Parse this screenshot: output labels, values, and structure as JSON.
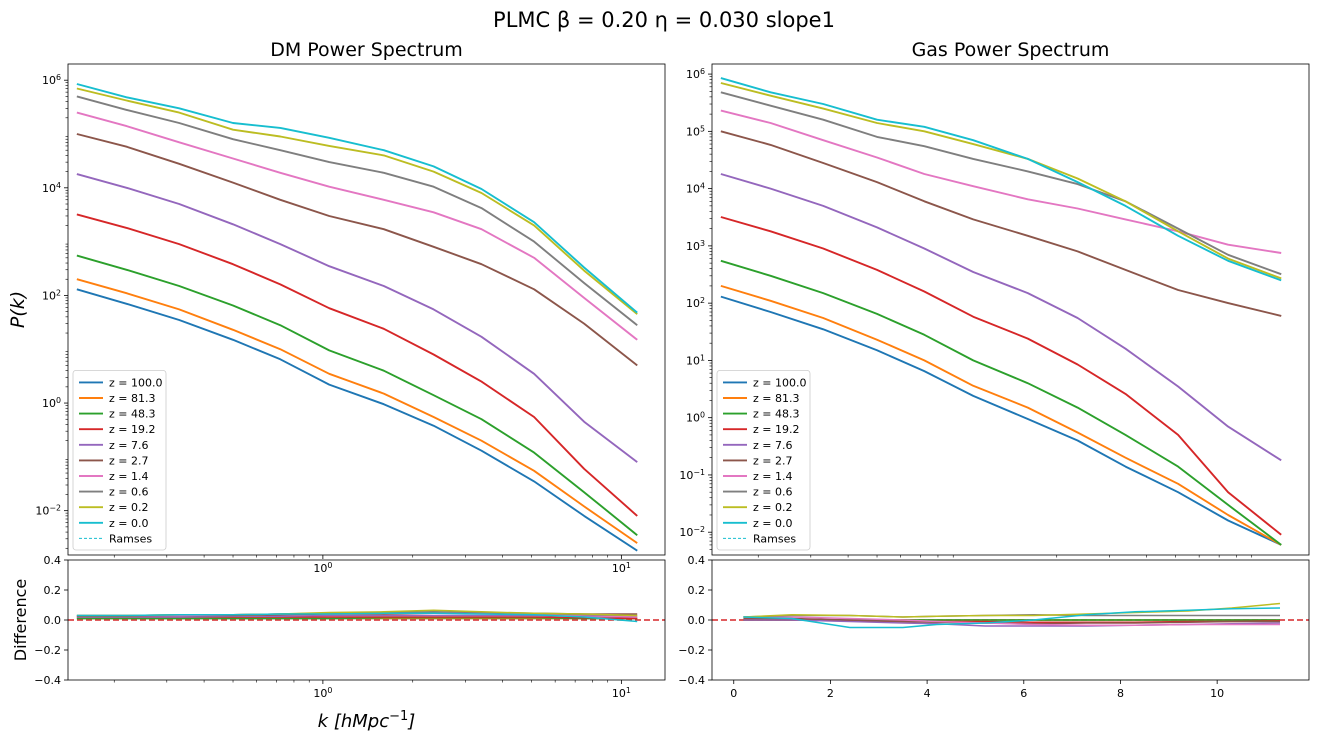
{
  "suptitle": "PLMC   β = 0.20    η = 0.030      slope1",
  "colors": [
    "#1f77b4",
    "#ff7f0e",
    "#2ca02c",
    "#d62728",
    "#9467bd",
    "#8c564b",
    "#e377c2",
    "#7f7f7f",
    "#bcbd22",
    "#17becf"
  ],
  "legend": {
    "entries": [
      "z = 100.0",
      "z = 81.3",
      "z = 48.3",
      "z = 19.2",
      "z = 7.6",
      "z = 2.7",
      "z = 1.4",
      "z = 0.6",
      "z = 0.2",
      "z = 0.0"
    ],
    "ramses_label": "Ramses"
  },
  "chart_data": [
    {
      "id": "dm",
      "type": "line",
      "title": "DM Power Spectrum",
      "ylabel": "P(k)",
      "xscale": "log",
      "yscale": "log",
      "xlim": [
        0.14,
        14
      ],
      "ylim": [
        0.0015,
        2000000
      ],
      "xticks": [
        {
          "v": 1,
          "label": "10^0"
        },
        {
          "v": 10,
          "label": "10^1"
        }
      ],
      "yticks": [
        {
          "v": 0.01,
          "label": "10^-2"
        },
        {
          "v": 1,
          "label": "10^0"
        },
        {
          "v": 100,
          "label": "10^2"
        },
        {
          "v": 10000,
          "label": "10^4"
        },
        {
          "v": 1000000,
          "label": "10^6"
        }
      ],
      "legend_loc": "lower-left",
      "k": [
        0.15,
        0.22,
        0.33,
        0.5,
        0.72,
        1.05,
        1.6,
        2.35,
        3.4,
        5.1,
        7.5,
        11.3
      ],
      "series": [
        {
          "name": "z = 100.0",
          "values": [
            130,
            70,
            35,
            15,
            6.5,
            2.2,
            0.95,
            0.38,
            0.13,
            0.035,
            0.008,
            0.0018
          ]
        },
        {
          "name": "z = 81.3",
          "values": [
            200,
            110,
            55,
            23,
            10,
            3.5,
            1.5,
            0.55,
            0.2,
            0.055,
            0.012,
            0.0025
          ]
        },
        {
          "name": "z = 48.3",
          "values": [
            550,
            300,
            150,
            65,
            28,
            9.5,
            4,
            1.4,
            0.5,
            0.12,
            0.022,
            0.0035
          ]
        },
        {
          "name": "z = 19.2",
          "values": [
            3200,
            1800,
            900,
            380,
            160,
            58,
            24,
            8,
            2.5,
            0.55,
            0.06,
            0.008
          ]
        },
        {
          "name": "z = 7.6",
          "values": [
            18000,
            10000,
            5000,
            2100,
            900,
            350,
            150,
            55,
            17,
            3.5,
            0.45,
            0.08
          ]
        },
        {
          "name": "z = 2.7",
          "values": [
            100000,
            58000,
            28000,
            12500,
            6000,
            3000,
            1700,
            800,
            380,
            130,
            30,
            5
          ]
        },
        {
          "name": "z = 1.4",
          "values": [
            250000,
            140000,
            70000,
            35000,
            19000,
            10500,
            6000,
            3500,
            1700,
            500,
            90,
            15
          ]
        },
        {
          "name": "z = 0.6",
          "values": [
            500000,
            280000,
            160000,
            80000,
            50000,
            30000,
            19000,
            10500,
            4200,
            1000,
            170,
            28
          ]
        },
        {
          "name": "z = 0.2",
          "values": [
            700000,
            420000,
            250000,
            120000,
            90000,
            60000,
            40000,
            20000,
            8000,
            2000,
            290,
            45
          ]
        },
        {
          "name": "z = 0.0",
          "values": [
            850000,
            480000,
            300000,
            160000,
            130000,
            85000,
            50000,
            25000,
            9500,
            2300,
            330,
            48
          ]
        }
      ]
    },
    {
      "id": "gas",
      "type": "line",
      "title": "Gas Power Spectrum",
      "xscale": "log",
      "yscale": "log",
      "xlim": [
        0.14,
        14
      ],
      "ylim": [
        0.004,
        1500000
      ],
      "yticks": [
        {
          "v": 0.01,
          "label": "10^-2"
        },
        {
          "v": 0.1,
          "label": "10^-1"
        },
        {
          "v": 1,
          "label": "10^0"
        },
        {
          "v": 10,
          "label": "10^1"
        },
        {
          "v": 100,
          "label": "10^2"
        },
        {
          "v": 1000,
          "label": "10^3"
        },
        {
          "v": 10000,
          "label": "10^4"
        },
        {
          "v": 100000,
          "label": "10^5"
        },
        {
          "v": 1000000,
          "label": "10^6"
        }
      ],
      "legend_loc": "lower-left",
      "k": [
        0.15,
        0.22,
        0.33,
        0.5,
        0.72,
        1.05,
        1.6,
        2.35,
        3.4,
        5.1,
        7.5,
        11.3
      ],
      "series": [
        {
          "name": "z = 100.0",
          "values": [
            130,
            70,
            35,
            15,
            6.5,
            2.4,
            0.95,
            0.4,
            0.14,
            0.05,
            0.016,
            0.006
          ]
        },
        {
          "name": "z = 81.3",
          "values": [
            200,
            110,
            55,
            23,
            10,
            3.6,
            1.5,
            0.55,
            0.2,
            0.07,
            0.02,
            0.006
          ]
        },
        {
          "name": "z = 48.3",
          "values": [
            550,
            300,
            150,
            65,
            28,
            10,
            4,
            1.5,
            0.5,
            0.14,
            0.03,
            0.006
          ]
        },
        {
          "name": "z = 19.2",
          "values": [
            3200,
            1800,
            900,
            380,
            160,
            58,
            24,
            8.5,
            2.6,
            0.5,
            0.05,
            0.009
          ]
        },
        {
          "name": "z = 7.6",
          "values": [
            18000,
            10000,
            5000,
            2100,
            900,
            350,
            150,
            55,
            16,
            3.5,
            0.7,
            0.18
          ]
        },
        {
          "name": "z = 2.7",
          "values": [
            100000,
            58000,
            28000,
            13000,
            6000,
            2900,
            1500,
            800,
            380,
            170,
            100,
            60
          ]
        },
        {
          "name": "z = 1.4",
          "values": [
            230000,
            140000,
            70000,
            35000,
            18000,
            11000,
            6500,
            4500,
            2900,
            1800,
            1050,
            750
          ]
        },
        {
          "name": "z = 0.6",
          "values": [
            480000,
            280000,
            160000,
            80000,
            55000,
            33000,
            20000,
            12000,
            6000,
            2000,
            700,
            320
          ]
        },
        {
          "name": "z = 0.2",
          "values": [
            700000,
            420000,
            250000,
            140000,
            100000,
            60000,
            33000,
            15000,
            6000,
            1800,
            600,
            270
          ]
        },
        {
          "name": "z = 0.0",
          "values": [
            850000,
            480000,
            300000,
            160000,
            120000,
            70000,
            33000,
            13000,
            5000,
            1500,
            550,
            250
          ]
        }
      ]
    },
    {
      "id": "dm_diff",
      "type": "line",
      "ylabel": "Difference",
      "xlabel": "k [hMpc^-1]",
      "xscale": "log",
      "xlim": [
        0.14,
        14
      ],
      "ylim": [
        -0.4,
        0.4
      ],
      "xticks": [
        {
          "v": 1,
          "label": "10^0"
        },
        {
          "v": 10,
          "label": "10^1"
        }
      ],
      "yticks": [
        {
          "v": -0.4,
          "label": "−0.4"
        },
        {
          "v": -0.2,
          "label": "−0.2"
        },
        {
          "v": 0,
          "label": "0.0"
        },
        {
          "v": 0.2,
          "label": "0.2"
        },
        {
          "v": 0.4,
          "label": "0.4"
        }
      ],
      "zero_line_color": "#d62728",
      "k": [
        0.15,
        0.22,
        0.33,
        0.5,
        0.72,
        1.05,
        1.6,
        2.35,
        3.4,
        5.1,
        7.5,
        11.3
      ],
      "series": [
        {
          "name": "z = 100.0",
          "values": [
            0.01,
            0.01,
            0.01,
            0.01,
            0.01,
            0.01,
            0.01,
            0.01,
            0.01,
            0.01,
            0.01,
            0.01
          ]
        },
        {
          "name": "z = 81.3",
          "values": [
            0.01,
            0.01,
            0.01,
            0.01,
            0.01,
            0.01,
            0.01,
            0.01,
            0.01,
            0.01,
            0.01,
            0.01
          ]
        },
        {
          "name": "z = 48.3",
          "values": [
            0.01,
            0.01,
            0.01,
            0.01,
            0.01,
            0.01,
            0.015,
            0.015,
            0.015,
            0.015,
            0.01,
            0.01
          ]
        },
        {
          "name": "z = 19.2",
          "values": [
            0.02,
            0.02,
            0.02,
            0.02,
            0.02,
            0.02,
            0.02,
            0.02,
            0.02,
            0.02,
            0.015,
            0.01
          ]
        },
        {
          "name": "z = 7.6",
          "values": [
            0.02,
            0.02,
            0.02,
            0.025,
            0.025,
            0.03,
            0.03,
            0.03,
            0.03,
            0.03,
            0.025,
            0.02
          ]
        },
        {
          "name": "z = 2.7",
          "values": [
            0.025,
            0.025,
            0.03,
            0.03,
            0.035,
            0.04,
            0.04,
            0.045,
            0.045,
            0.045,
            0.04,
            0.04
          ]
        },
        {
          "name": "z = 1.4",
          "values": [
            0.03,
            0.03,
            0.03,
            0.035,
            0.04,
            0.045,
            0.05,
            0.05,
            0.045,
            0.04,
            0.03,
            0.02
          ]
        },
        {
          "name": "z = 0.6",
          "values": [
            0.03,
            0.03,
            0.035,
            0.035,
            0.04,
            0.045,
            0.05,
            0.055,
            0.05,
            0.045,
            0.035,
            0.03
          ]
        },
        {
          "name": "z = 0.2",
          "values": [
            0.03,
            0.03,
            0.035,
            0.035,
            0.04,
            0.05,
            0.055,
            0.065,
            0.055,
            0.045,
            0.04,
            0.03
          ]
        },
        {
          "name": "z = 0.0",
          "values": [
            0.03,
            0.03,
            0.035,
            0.035,
            0.04,
            0.04,
            0.045,
            0.045,
            0.04,
            0.035,
            0.02,
            -0.01
          ]
        }
      ]
    },
    {
      "id": "gas_diff",
      "type": "line",
      "xscale": "linear",
      "xlim": [
        -0.45,
        11.9
      ],
      "ylim": [
        -0.4,
        0.4
      ],
      "xticks": [
        {
          "v": 0,
          "label": "0"
        },
        {
          "v": 2,
          "label": "2"
        },
        {
          "v": 4,
          "label": "4"
        },
        {
          "v": 6,
          "label": "6"
        },
        {
          "v": 8,
          "label": "8"
        },
        {
          "v": 10,
          "label": "10"
        }
      ],
      "yticks": [
        {
          "v": -0.4,
          "label": "−0.4"
        },
        {
          "v": -0.2,
          "label": "−0.2"
        },
        {
          "v": 0,
          "label": "0.0"
        },
        {
          "v": 0.2,
          "label": "0.2"
        },
        {
          "v": 0.4,
          "label": "0.4"
        }
      ],
      "zero_line_color": "#d62728",
      "k": [
        0.2,
        1.2,
        2.4,
        3.5,
        4.2,
        5.2,
        6.2,
        7.3,
        8.3,
        9.4,
        10.3,
        11.3
      ],
      "series": [
        {
          "name": "z = 100.0",
          "values": [
            0.0,
            0.0,
            0.0,
            0.0,
            0.0,
            0.0,
            0.0,
            0.0,
            0.0,
            0.0,
            0.0,
            0.0
          ]
        },
        {
          "name": "z = 81.3",
          "values": [
            0.0,
            0.0,
            0.0,
            0.0,
            0.0,
            0.0,
            0.0,
            0.0,
            0.0,
            0.0,
            0.0,
            0.0
          ]
        },
        {
          "name": "z = 48.3",
          "values": [
            0.0,
            0.0,
            0.0,
            0.0,
            0.0,
            0.0,
            0.0,
            0.0,
            0.0,
            0.0,
            0.0,
            0.0
          ]
        },
        {
          "name": "z = 19.2",
          "values": [
            0.0,
            0.0,
            -0.005,
            -0.01,
            -0.01,
            -0.01,
            -0.015,
            -0.015,
            -0.015,
            -0.01,
            -0.01,
            -0.005
          ]
        },
        {
          "name": "z = 7.6",
          "values": [
            0.0,
            0.0,
            -0.01,
            -0.02,
            -0.025,
            -0.04,
            -0.04,
            -0.04,
            -0.035,
            -0.03,
            -0.025,
            -0.02
          ]
        },
        {
          "name": "z = 2.7",
          "values": [
            0.01,
            0.01,
            0.0,
            -0.01,
            -0.015,
            -0.02,
            -0.025,
            -0.02,
            -0.02,
            -0.015,
            -0.01,
            -0.01
          ]
        },
        {
          "name": "z = 1.4",
          "values": [
            0.02,
            0.02,
            0.01,
            0.0,
            -0.01,
            -0.02,
            -0.03,
            -0.035,
            -0.035,
            -0.03,
            -0.03,
            -0.03
          ]
        },
        {
          "name": "z = 0.6",
          "values": [
            0.02,
            0.03,
            0.03,
            0.02,
            0.025,
            0.03,
            0.035,
            0.03,
            0.03,
            0.03,
            0.03,
            0.03
          ]
        },
        {
          "name": "z = 0.2",
          "values": [
            0.02,
            0.035,
            0.03,
            0.02,
            0.025,
            0.03,
            0.03,
            0.04,
            0.05,
            0.06,
            0.08,
            0.11
          ]
        },
        {
          "name": "z = 0.0",
          "values": [
            0.02,
            0.01,
            -0.05,
            -0.05,
            -0.03,
            -0.02,
            0.0,
            0.035,
            0.055,
            0.065,
            0.075,
            0.08
          ]
        }
      ]
    }
  ]
}
